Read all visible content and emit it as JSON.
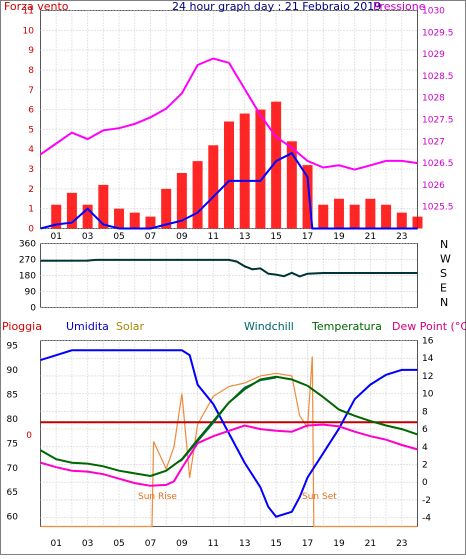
{
  "chart_data": [
    {
      "type": "line",
      "title": "24 hour graph day : 21 Febbraio 2019",
      "left_axis_label": "Forza vento",
      "right_axis_label": "Pressione",
      "x_ticks": [
        "01",
        "03",
        "05",
        "07",
        "09",
        "11",
        "13",
        "15",
        "17",
        "19",
        "21",
        "23"
      ],
      "x_range": [
        0,
        24
      ],
      "y_left_range": [
        0,
        11
      ],
      "y_left_ticks": [
        "0",
        "1",
        "2",
        "3",
        "4",
        "5",
        "6",
        "7",
        "8",
        "9",
        "10",
        "11"
      ],
      "y_right_range": [
        1025,
        1030
      ],
      "y_right_ticks": [
        "1025.5",
        "1026",
        "1026.5",
        "1027",
        "1027.5",
        "1028",
        "1028.5",
        "1029",
        "1029.5",
        "1030"
      ],
      "grid": true,
      "series": [
        {
          "name": "Pressione",
          "axis": "right",
          "color": "#ff00ff",
          "points": [
            [
              0,
              1026.7
            ],
            [
              1,
              1026.95
            ],
            [
              2,
              1027.2
            ],
            [
              3,
              1027.05
            ],
            [
              4,
              1027.25
            ],
            [
              5,
              1027.3
            ],
            [
              6,
              1027.4
            ],
            [
              7,
              1027.55
            ],
            [
              8,
              1027.75
            ],
            [
              9,
              1028.1
            ],
            [
              10,
              1028.75
            ],
            [
              11,
              1028.9
            ],
            [
              12,
              1028.8
            ],
            [
              13,
              1028.2
            ],
            [
              14,
              1027.6
            ],
            [
              15,
              1027.1
            ],
            [
              16,
              1026.85
            ],
            [
              17,
              1026.55
            ],
            [
              18,
              1026.4
            ],
            [
              19,
              1026.45
            ],
            [
              20,
              1026.35
            ],
            [
              21,
              1026.45
            ],
            [
              22,
              1026.55
            ],
            [
              23,
              1026.55
            ],
            [
              24,
              1026.5
            ]
          ]
        },
        {
          "name": "Raffica",
          "axis": "left",
          "color": "#ff0000",
          "points": [
            [
              0,
              0
            ],
            [
              1,
              1.2
            ],
            [
              2,
              1.8
            ],
            [
              3,
              1.2
            ],
            [
              4,
              2.2
            ],
            [
              5,
              1
            ],
            [
              6,
              0.8
            ],
            [
              7,
              0.6
            ],
            [
              8,
              2
            ],
            [
              9,
              2.8
            ],
            [
              10,
              3.4
            ],
            [
              11,
              4.2
            ],
            [
              12,
              5.4
            ],
            [
              13,
              5.8
            ],
            [
              14,
              6
            ],
            [
              15,
              6.4
            ],
            [
              16,
              4.4
            ],
            [
              17,
              3.2
            ],
            [
              18,
              1.2
            ],
            [
              19,
              1.5
            ],
            [
              20,
              1.2
            ],
            [
              21,
              1.5
            ],
            [
              22,
              1.2
            ],
            [
              23,
              0.8
            ],
            [
              24,
              0.6
            ]
          ]
        },
        {
          "name": "Vento",
          "axis": "left",
          "color": "#0000ff",
          "points": [
            [
              0,
              0
            ],
            [
              1,
              0.2
            ],
            [
              2,
              0.3
            ],
            [
              3,
              1
            ],
            [
              4,
              0.2
            ],
            [
              5,
              0
            ],
            [
              6,
              0
            ],
            [
              7,
              0
            ],
            [
              8,
              0.2
            ],
            [
              9,
              0.4
            ],
            [
              10,
              0.8
            ],
            [
              11,
              1.6
            ],
            [
              12,
              2.4
            ],
            [
              13,
              2.4
            ],
            [
              14,
              2.4
            ],
            [
              15,
              3.4
            ],
            [
              16,
              3.8
            ],
            [
              17,
              2.6
            ],
            [
              17.3,
              0
            ],
            [
              24,
              0
            ]
          ]
        }
      ]
    },
    {
      "type": "line",
      "title": "",
      "y_range": [
        0,
        360
      ],
      "y_ticks": [
        "0",
        "90",
        "180",
        "270",
        "360"
      ],
      "right_labels": [
        "N",
        "W",
        "S",
        "E",
        "N"
      ],
      "x_range": [
        0,
        24
      ],
      "grid": true,
      "series": [
        {
          "name": "Direzione vento",
          "color": "#003333",
          "points": [
            [
              0,
              263
            ],
            [
              3,
              264
            ],
            [
              3.5,
              268
            ],
            [
              12,
              268
            ],
            [
              12.5,
              258
            ],
            [
              13,
              232
            ],
            [
              13.5,
              215
            ],
            [
              14,
              220
            ],
            [
              14.5,
              190
            ],
            [
              15,
              185
            ],
            [
              15.5,
              176
            ],
            [
              16,
              195
            ],
            [
              16.5,
              175
            ],
            [
              17,
              190
            ],
            [
              18,
              194
            ],
            [
              24,
              194
            ]
          ]
        }
      ]
    },
    {
      "type": "line",
      "title": "",
      "legend": [
        {
          "label": "Pioggia",
          "color": "#d60000"
        },
        {
          "label": "Umidita",
          "color": "#0000cc"
        },
        {
          "label": "Solar",
          "color": "#aa8800"
        },
        {
          "label": "Windchill",
          "color": "#006666"
        },
        {
          "label": "Temperatura",
          "color": "#006600"
        },
        {
          "label": "Dew Point (°C)",
          "color": "#d6007a"
        }
      ],
      "annotations": [
        "Sun Rise",
        "Sun Set"
      ],
      "pioggia_value": "0",
      "x_ticks": [
        "01",
        "03",
        "05",
        "07",
        "09",
        "11",
        "13",
        "15",
        "17",
        "19",
        "21",
        "23"
      ],
      "x_range": [
        0,
        24
      ],
      "y_left_range": [
        58,
        96
      ],
      "y_left_ticks": [
        "60",
        "65",
        "70",
        "75",
        "80",
        "85",
        "90",
        "95"
      ],
      "y_right_range": [
        -5,
        16
      ],
      "y_right_ticks": [
        "-4",
        "-2",
        "0",
        "2",
        "4",
        "6",
        "8",
        "10",
        "12",
        "14",
        "16"
      ],
      "grid": true,
      "series": [
        {
          "name": "Umidita",
          "axis": "left",
          "color": "#0000ff",
          "points": [
            [
              0,
              92
            ],
            [
              1,
              93
            ],
            [
              2,
              94
            ],
            [
              3,
              94
            ],
            [
              5,
              94
            ],
            [
              6,
              94
            ],
            [
              7,
              94
            ],
            [
              8,
              94
            ],
            [
              9,
              94
            ],
            [
              9.5,
              93
            ],
            [
              10,
              87
            ],
            [
              11,
              83
            ],
            [
              12,
              77
            ],
            [
              13,
              71
            ],
            [
              14,
              66
            ],
            [
              14.5,
              62
            ],
            [
              15,
              60
            ],
            [
              16,
              61
            ],
            [
              16.5,
              64
            ],
            [
              17,
              68
            ],
            [
              18,
              73
            ],
            [
              19,
              78
            ],
            [
              20,
              84
            ],
            [
              21,
              87
            ],
            [
              22,
              89
            ],
            [
              23,
              90
            ],
            [
              24,
              90
            ]
          ]
        },
        {
          "name": "Temperatura",
          "axis": "right",
          "color": "#006600",
          "points": [
            [
              0,
              3.6
            ],
            [
              1,
              2.6
            ],
            [
              2,
              2.2
            ],
            [
              3,
              2.1
            ],
            [
              4,
              1.8
            ],
            [
              5,
              1.3
            ],
            [
              6,
              1.0
            ],
            [
              7,
              0.7
            ],
            [
              8,
              1.3
            ],
            [
              9,
              2.6
            ],
            [
              10,
              4.8
            ],
            [
              11,
              6.9
            ],
            [
              12,
              9.0
            ],
            [
              13,
              10.5
            ],
            [
              14,
              11.6
            ],
            [
              15,
              11.9
            ],
            [
              16,
              11.6
            ],
            [
              17,
              10.9
            ],
            [
              18,
              9.6
            ],
            [
              19,
              8.2
            ],
            [
              20,
              7.5
            ],
            [
              21,
              6.9
            ],
            [
              22,
              6.4
            ],
            [
              23,
              6.0
            ],
            [
              24,
              5.4
            ]
          ]
        },
        {
          "name": "Windchill",
          "axis": "right",
          "color": "#006666",
          "points": [
            [
              8.5,
              2.0
            ],
            [
              9,
              2.5
            ],
            [
              10,
              4.6
            ],
            [
              11,
              6.7
            ],
            [
              12,
              9.0
            ],
            [
              13,
              10.7
            ],
            [
              14,
              11.5
            ],
            [
              15,
              11.8
            ]
          ]
        },
        {
          "name": "Dew Point (°C)",
          "axis": "right",
          "color": "#ff00cc",
          "points": [
            [
              0,
              2.2
            ],
            [
              1,
              1.7
            ],
            [
              2,
              1.3
            ],
            [
              3,
              1.2
            ],
            [
              4,
              0.9
            ],
            [
              5,
              0.4
            ],
            [
              6,
              -0.1
            ],
            [
              7,
              -0.4
            ],
            [
              8,
              -0.3
            ],
            [
              8.5,
              0.1
            ],
            [
              9,
              1.6
            ],
            [
              10,
              4.4
            ],
            [
              11,
              5.2
            ],
            [
              12,
              5.8
            ],
            [
              13,
              6.4
            ],
            [
              14,
              6.0
            ],
            [
              15,
              5.8
            ],
            [
              16,
              5.7
            ],
            [
              17,
              6.4
            ],
            [
              18,
              6.5
            ],
            [
              19,
              6.3
            ],
            [
              20,
              5.7
            ],
            [
              21,
              5.2
            ],
            [
              22,
              4.8
            ],
            [
              23,
              4.2
            ],
            [
              24,
              3.7
            ]
          ]
        },
        {
          "name": "Solar",
          "axis": "right",
          "color": "#f08a3c",
          "points": [
            [
              0,
              -5
            ],
            [
              7.1,
              -5
            ],
            [
              7.2,
              4.6
            ],
            [
              8,
              1.5
            ],
            [
              8.5,
              4.0
            ],
            [
              9,
              10.0
            ],
            [
              9.5,
              0.5
            ],
            [
              10,
              6.5
            ],
            [
              11,
              9.7
            ],
            [
              12,
              10.8
            ],
            [
              13,
              11.2
            ],
            [
              14,
              12.0
            ],
            [
              15,
              12.3
            ],
            [
              16,
              12.0
            ],
            [
              16.5,
              7.5
            ],
            [
              17,
              6.2
            ],
            [
              17.3,
              14.2
            ],
            [
              17.4,
              -5
            ],
            [
              24,
              -5
            ]
          ]
        },
        {
          "name": "Pioggia",
          "axis": "left",
          "color": "#c00000",
          "points": [
            [
              0,
              79.3
            ],
            [
              24,
              79.3
            ]
          ]
        }
      ]
    }
  ]
}
